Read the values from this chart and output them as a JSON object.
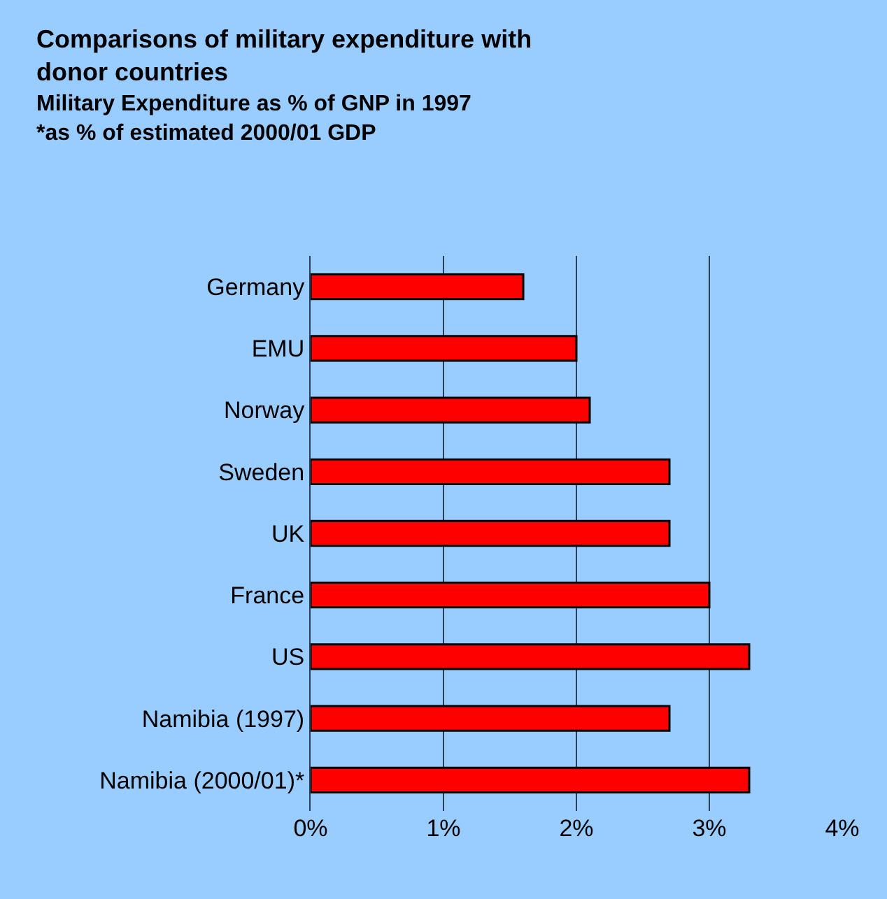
{
  "chart_data": {
    "type": "bar",
    "orientation": "horizontal",
    "title": "Comparisons of military expenditure with donor countries",
    "subtitle": "Military Expenditure as % of GNP in 1997\n*as % of estimated 2000/01 GDP",
    "categories": [
      "Germany",
      "EMU",
      "Norway",
      "Sweden",
      "UK",
      "France",
      "US",
      "Namibia (1997)",
      "Namibia (2000/01)*"
    ],
    "values": [
      1.6,
      2.0,
      2.1,
      2.7,
      2.7,
      3.0,
      3.3,
      2.7,
      3.3
    ],
    "color": "#ff0000",
    "xlim": [
      0,
      4
    ],
    "xticks": [
      {
        "value": 0,
        "label": "0%"
      },
      {
        "value": 1,
        "label": "1%"
      },
      {
        "value": 2,
        "label": "2%"
      },
      {
        "value": 3,
        "label": "3%"
      },
      {
        "value": 4,
        "label": "4%"
      }
    ],
    "grid": "x",
    "legend": false
  }
}
